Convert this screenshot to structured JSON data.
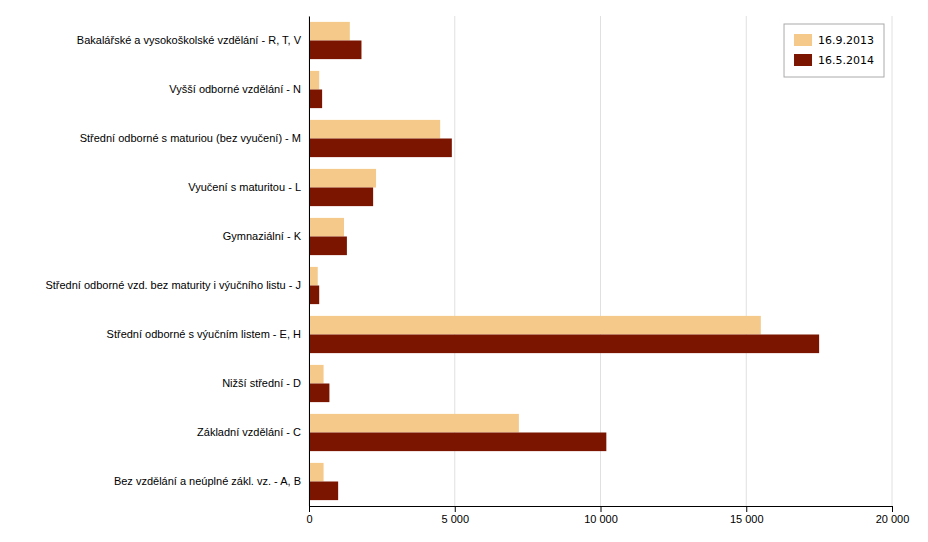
{
  "chart_data": {
    "type": "bar",
    "orientation": "horizontal",
    "categories": [
      "Bakalářské a vysokoškolské vzdělání - R, T, V",
      "Vyšší odborné vzdělání - N",
      "Střední odborné s maturiou (bez vyučení) - M",
      "Vyučení s maturitou - L",
      "Gymnaziální - K",
      "Střední odborné vzd. bez maturity i výučního listu - J",
      "Střední odborné s výučním listem - E, H",
      "Nižší střední - D",
      "Základní vzdělání - C",
      "Bez vzdělání a neúplné zákl. vz. - A, B"
    ],
    "series": [
      {
        "name": "16.9.2013",
        "color": "#f5c98a",
        "values": [
          1400,
          350,
          4500,
          2300,
          1200,
          300,
          15500,
          500,
          7200,
          500
        ]
      },
      {
        "name": "16.5.2014",
        "color": "#7b1500",
        "values": [
          1800,
          450,
          4900,
          2200,
          1300,
          350,
          17500,
          700,
          10200,
          1000
        ]
      }
    ],
    "xlim": [
      0,
      20000
    ],
    "xticks": [
      0,
      {
        "value": 5000,
        "label": "5 000"
      },
      {
        "value": 10000,
        "label": "10 000"
      },
      {
        "value": 15000,
        "label": "15 000"
      },
      {
        "value": 20000,
        "label": "20 000"
      }
    ],
    "grid": true,
    "legend": "upper right"
  }
}
